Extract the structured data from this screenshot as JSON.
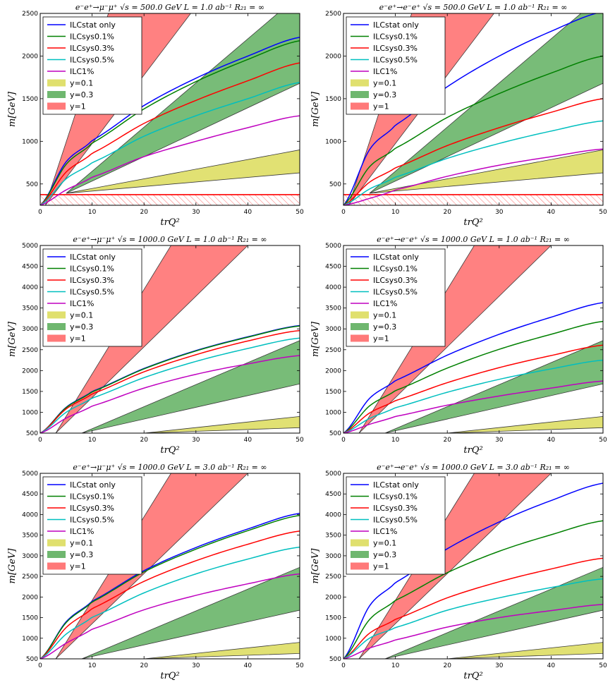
{
  "legend_entries": [
    "ILCstat only",
    "ILCsys0.1%",
    "ILCsys0.3%",
    "ILCsys0.5%",
    "ILC1%",
    "y=0.1",
    "y=0.3",
    "y=1"
  ],
  "colors": {
    "ILCstat only": "#0000ff",
    "ILCsys0.1%": "#008000",
    "ILCsys0.3%": "#ff0000",
    "ILCsys0.5%": "#00bfbf",
    "ILC1%": "#bf00bf",
    "y=0.1": "#d6d63d",
    "y=0.3": "#3f9f3f",
    "y=1": "#ff4c4c",
    "hatch": "#ff0000"
  },
  "chart_data": [
    {
      "type": "line",
      "title": "e⁻e⁺→μ⁻μ⁺ √s = 500.0 GeV L = 1.0 ab⁻¹ R₂₁ = ∞",
      "xlabel": "trQ²",
      "ylabel": "m[GeV]",
      "xlim": [
        0,
        50
      ],
      "ylim": [
        250,
        2500
      ],
      "xticks": [
        "0",
        "10",
        "20",
        "30",
        "40",
        "50"
      ],
      "yticks": [
        "500",
        "1000",
        "1500",
        "2000",
        "2500"
      ],
      "legend": "top-left",
      "x": [
        0,
        5,
        10,
        20,
        30,
        40,
        50
      ],
      "series": [
        {
          "name": "ILCstat only",
          "values": [
            250,
            760,
            1010,
            1420,
            1740,
            2000,
            2220
          ]
        },
        {
          "name": "ILCsys0.1%",
          "values": [
            250,
            730,
            980,
            1380,
            1700,
            1960,
            2180
          ]
        },
        {
          "name": "ILCsys0.3%",
          "values": [
            250,
            640,
            860,
            1210,
            1480,
            1710,
            1920
          ]
        },
        {
          "name": "ILCsys0.5%",
          "values": [
            250,
            560,
            750,
            1060,
            1300,
            1500,
            1690
          ]
        },
        {
          "name": "ILC1%",
          "values": [
            250,
            430,
            580,
            820,
            1000,
            1160,
            1300
          ]
        }
      ],
      "bands": [
        {
          "name": "y=0.1",
          "x": [
            5,
            50
          ],
          "lower": [
            390,
            630
          ],
          "upper": [
            390,
            900
          ]
        },
        {
          "name": "y=0.3",
          "x": [
            5,
            50
          ],
          "lower": [
            390,
            1680
          ],
          "upper": [
            390,
            2720
          ]
        },
        {
          "name": "y=1",
          "x": [
            1,
            29
          ],
          "lower": [
            250,
            2500
          ],
          "upper": [
            250,
            5440
          ]
        }
      ],
      "excluded_below": 375
    },
    {
      "type": "line",
      "title": "e⁻e⁺→e⁻e⁺ √s = 500.0 GeV L = 1.0 ab⁻¹ R₂₁ = ∞",
      "xlabel": "trQ²",
      "ylabel": "m[GeV]",
      "xlim": [
        0,
        50
      ],
      "ylim": [
        250,
        2500
      ],
      "xticks": [
        "0",
        "10",
        "20",
        "30",
        "40",
        "50"
      ],
      "yticks": [
        "500",
        "1000",
        "1500",
        "2000",
        "2500"
      ],
      "legend": "top-left",
      "x": [
        0,
        5,
        10,
        20,
        30,
        40,
        50
      ],
      "series": [
        {
          "name": "ILCstat only",
          "values": [
            250,
            900,
            1190,
            1640,
            2000,
            2290,
            2520
          ]
        },
        {
          "name": "ILCsys0.1%",
          "values": [
            250,
            700,
            920,
            1280,
            1560,
            1800,
            2000
          ]
        },
        {
          "name": "ILCsys0.3%",
          "values": [
            250,
            520,
            690,
            950,
            1160,
            1340,
            1500
          ]
        },
        {
          "name": "ILCsys0.5%",
          "values": [
            250,
            440,
            580,
            800,
            975,
            1120,
            1240
          ]
        },
        {
          "name": "ILC1%",
          "values": [
            250,
            330,
            430,
            590,
            720,
            820,
            910
          ]
        }
      ],
      "bands": [
        {
          "name": "y=0.1",
          "x": [
            5,
            50
          ],
          "lower": [
            390,
            630
          ],
          "upper": [
            390,
            900
          ]
        },
        {
          "name": "y=0.3",
          "x": [
            5,
            50
          ],
          "lower": [
            390,
            1680
          ],
          "upper": [
            390,
            2720
          ]
        },
        {
          "name": "y=1",
          "x": [
            1,
            29
          ],
          "lower": [
            250,
            2500
          ],
          "upper": [
            250,
            5440
          ]
        }
      ],
      "excluded_below": 375
    },
    {
      "type": "line",
      "title": "e⁻e⁺→μ⁻μ⁺ √s = 1000.0 GeV L = 1.0 ab⁻¹ R₂₁ = ∞",
      "xlabel": "trQ²",
      "ylabel": "m[GeV]",
      "xlim": [
        0,
        50
      ],
      "ylim": [
        500,
        5000
      ],
      "xticks": [
        "0",
        "10",
        "20",
        "30",
        "40",
        "50"
      ],
      "yticks": [
        "500",
        "1000",
        "1500",
        "2000",
        "2500",
        "3000",
        "3500",
        "4000",
        "4500",
        "5000"
      ],
      "legend": "top-left",
      "x": [
        0,
        5,
        10,
        20,
        30,
        40,
        50
      ],
      "series": [
        {
          "name": "ILCstat only",
          "values": [
            500,
            1120,
            1500,
            2050,
            2480,
            2810,
            3080
          ]
        },
        {
          "name": "ILCsys0.1%",
          "values": [
            500,
            1110,
            1490,
            2040,
            2470,
            2800,
            3070
          ]
        },
        {
          "name": "ILCsys0.3%",
          "values": [
            500,
            1080,
            1440,
            1970,
            2380,
            2710,
            2960
          ]
        },
        {
          "name": "ILCsys0.5%",
          "values": [
            500,
            1000,
            1340,
            1830,
            2220,
            2530,
            2780
          ]
        },
        {
          "name": "ILC1%",
          "values": [
            500,
            860,
            1150,
            1580,
            1910,
            2160,
            2360
          ]
        }
      ],
      "bands": [
        {
          "name": "y=0.1",
          "x": [
            20,
            50
          ],
          "lower": [
            500,
            630
          ],
          "upper": [
            500,
            900
          ]
        },
        {
          "name": "y=0.3",
          "x": [
            8,
            50
          ],
          "lower": [
            500,
            1680
          ],
          "upper": [
            500,
            2720
          ]
        },
        {
          "name": "y=1",
          "x": [
            3,
            40
          ],
          "lower": [
            500,
            5000
          ],
          "upper": [
            500,
            8000
          ]
        }
      ]
    },
    {
      "type": "line",
      "title": "e⁻e⁺→e⁻e⁺ √s = 1000.0 GeV L = 1.0 ab⁻¹ R₂₁ = ∞",
      "xlabel": "trQ²",
      "ylabel": "m[GeV]",
      "xlim": [
        0,
        50
      ],
      "ylim": [
        500,
        5000
      ],
      "xticks": [
        "0",
        "10",
        "20",
        "30",
        "40",
        "50"
      ],
      "yticks": [
        "500",
        "1000",
        "1500",
        "2000",
        "2500",
        "3000",
        "3500",
        "4000",
        "4500",
        "5000"
      ],
      "legend": "top-left",
      "x": [
        0,
        5,
        10,
        20,
        30,
        40,
        50
      ],
      "series": [
        {
          "name": "ILCstat only",
          "values": [
            500,
            1330,
            1760,
            2370,
            2870,
            3280,
            3630
          ]
        },
        {
          "name": "ILCsys0.1%",
          "values": [
            500,
            1150,
            1520,
            2060,
            2510,
            2870,
            3180
          ]
        },
        {
          "name": "ILCsys0.3%",
          "values": [
            500,
            980,
            1280,
            1710,
            2070,
            2360,
            2610
          ]
        },
        {
          "name": "ILCsys0.5%",
          "values": [
            500,
            850,
            1110,
            1480,
            1790,
            2040,
            2250
          ]
        },
        {
          "name": "ILC1%",
          "values": [
            500,
            710,
            900,
            1170,
            1390,
            1580,
            1750
          ]
        }
      ],
      "bands": [
        {
          "name": "y=0.1",
          "x": [
            20,
            50
          ],
          "lower": [
            500,
            630
          ],
          "upper": [
            500,
            900
          ]
        },
        {
          "name": "y=0.3",
          "x": [
            8,
            50
          ],
          "lower": [
            500,
            1680
          ],
          "upper": [
            500,
            2720
          ]
        },
        {
          "name": "y=1",
          "x": [
            3,
            40
          ],
          "lower": [
            500,
            5000
          ],
          "upper": [
            500,
            8000
          ]
        }
      ]
    },
    {
      "type": "line",
      "title": "e⁻e⁺→μ⁻μ⁺ √s = 1000.0 GeV L = 3.0 ab⁻¹ R₂₁ = ∞",
      "xlabel": "trQ²",
      "ylabel": "m[GeV]",
      "xlim": [
        0,
        50
      ],
      "ylim": [
        500,
        5000
      ],
      "xticks": [
        "0",
        "10",
        "20",
        "30",
        "40",
        "50"
      ],
      "yticks": [
        "500",
        "1000",
        "1500",
        "2000",
        "2500",
        "3000",
        "3500",
        "4000",
        "4500",
        "5000"
      ],
      "legend": "top-left",
      "x": [
        0,
        5,
        10,
        20,
        30,
        40,
        50
      ],
      "series": [
        {
          "name": "ILCstat only",
          "values": [
            500,
            1400,
            1900,
            2640,
            3200,
            3650,
            4030
          ]
        },
        {
          "name": "ILCsys0.1%",
          "values": [
            500,
            1380,
            1880,
            2610,
            3160,
            3610,
            3980
          ]
        },
        {
          "name": "ILCsys0.3%",
          "values": [
            500,
            1260,
            1720,
            2380,
            2880,
            3280,
            3600
          ]
        },
        {
          "name": "ILCsys0.5%",
          "values": [
            500,
            1100,
            1510,
            2100,
            2560,
            2920,
            3210
          ]
        },
        {
          "name": "ILC1%",
          "values": [
            500,
            880,
            1220,
            1690,
            2040,
            2320,
            2560
          ]
        }
      ],
      "bands": [
        {
          "name": "y=0.1",
          "x": [
            20,
            50
          ],
          "lower": [
            500,
            630
          ],
          "upper": [
            500,
            900
          ]
        },
        {
          "name": "y=0.3",
          "x": [
            8,
            50
          ],
          "lower": [
            500,
            1680
          ],
          "upper": [
            500,
            2720
          ]
        },
        {
          "name": "y=1",
          "x": [
            3,
            40
          ],
          "lower": [
            500,
            5000
          ],
          "upper": [
            500,
            8000
          ]
        }
      ]
    },
    {
      "type": "line",
      "title": "e⁻e⁺→e⁻e⁺ √s = 1000.0 GeV L = 3.0 ab⁻¹ R₂₁ = ∞",
      "xlabel": "trQ²",
      "ylabel": "m[GeV]",
      "xlim": [
        0,
        50
      ],
      "ylim": [
        500,
        5000
      ],
      "xticks": [
        "0",
        "10",
        "20",
        "30",
        "40",
        "50"
      ],
      "yticks": [
        "500",
        "1000",
        "1500",
        "2000",
        "2500",
        "3000",
        "3500",
        "4000",
        "4500",
        "5000"
      ],
      "legend": "top-left",
      "x": [
        0,
        5,
        10,
        20,
        30,
        40,
        50
      ],
      "series": [
        {
          "name": "ILCstat only",
          "values": [
            500,
            1780,
            2350,
            3170,
            3820,
            4340,
            4760
          ]
        },
        {
          "name": "ILCsys0.1%",
          "values": [
            500,
            1450,
            1920,
            2590,
            3110,
            3510,
            3850
          ]
        },
        {
          "name": "ILCsys0.3%",
          "values": [
            500,
            1120,
            1460,
            1980,
            2370,
            2680,
            2940
          ]
        },
        {
          "name": "ILCsys0.5%",
          "values": [
            500,
            1000,
            1260,
            1680,
            1980,
            2230,
            2440
          ]
        },
        {
          "name": "ILC1%",
          "values": [
            500,
            760,
            960,
            1270,
            1500,
            1670,
            1820
          ]
        }
      ],
      "bands": [
        {
          "name": "y=0.1",
          "x": [
            20,
            50
          ],
          "lower": [
            500,
            630
          ],
          "upper": [
            500,
            900
          ]
        },
        {
          "name": "y=0.3",
          "x": [
            8,
            50
          ],
          "lower": [
            500,
            1680
          ],
          "upper": [
            500,
            2720
          ]
        },
        {
          "name": "y=1",
          "x": [
            3,
            40
          ],
          "lower": [
            500,
            5000
          ],
          "upper": [
            500,
            8000
          ]
        }
      ]
    }
  ]
}
